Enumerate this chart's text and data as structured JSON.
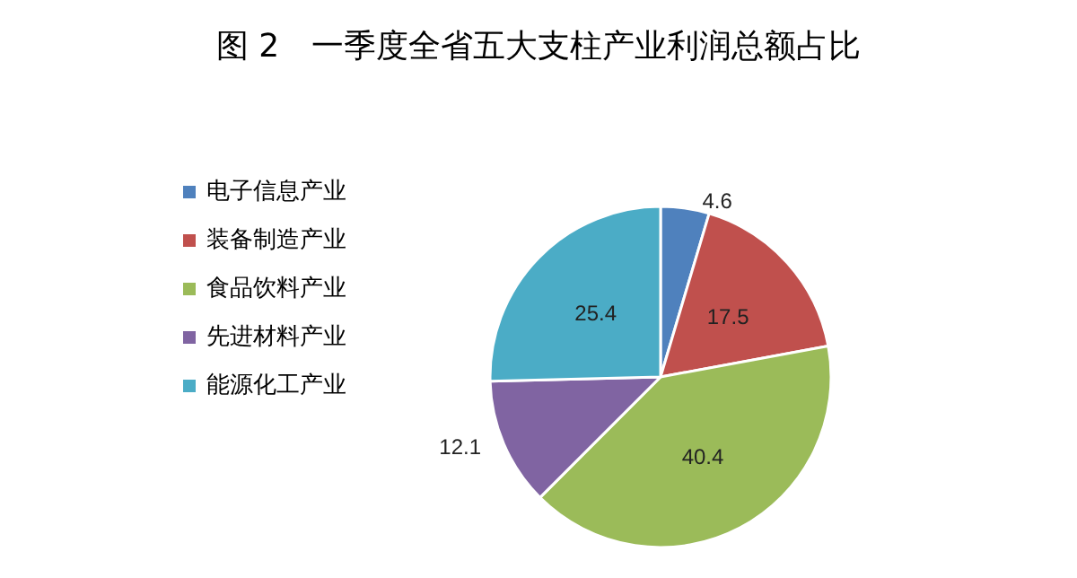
{
  "chart_data": {
    "type": "pie",
    "title": "图 2　一季度全省五大支柱产业利润总额占比",
    "categories": [
      "电子信息产业",
      "装备制造产业",
      "食品饮料产业",
      "先进材料产业",
      "能源化工产业"
    ],
    "values": [
      4.6,
      17.5,
      40.4,
      12.1,
      25.4
    ],
    "colors": [
      "#4f81bd",
      "#c0504d",
      "#9bbb59",
      "#8064a2",
      "#4bacc6"
    ],
    "data_labels": true,
    "legend": "left"
  }
}
